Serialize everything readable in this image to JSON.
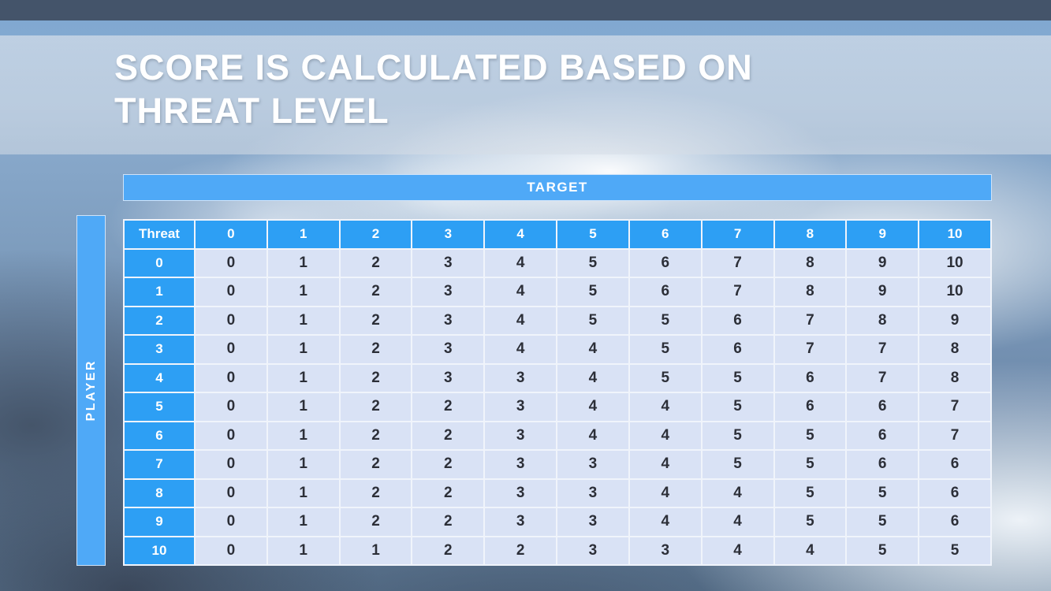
{
  "slide": {
    "title": "SCORE IS CALCULATED BASED ON THREAT LEVEL"
  },
  "table": {
    "target_label": "TARGET",
    "player_label": "PLAYER",
    "corner_label": "Threat",
    "column_headers": [
      "0",
      "1",
      "2",
      "3",
      "4",
      "5",
      "6",
      "7",
      "8",
      "9",
      "10"
    ],
    "row_headers": [
      "0",
      "1",
      "2",
      "3",
      "4",
      "5",
      "6",
      "7",
      "8",
      "9",
      "10"
    ],
    "rows": [
      [
        0,
        1,
        2,
        3,
        4,
        5,
        6,
        7,
        8,
        9,
        10
      ],
      [
        0,
        1,
        2,
        3,
        4,
        5,
        6,
        7,
        8,
        9,
        10
      ],
      [
        0,
        1,
        2,
        3,
        4,
        5,
        5,
        6,
        7,
        8,
        9
      ],
      [
        0,
        1,
        2,
        3,
        4,
        4,
        5,
        6,
        7,
        7,
        8
      ],
      [
        0,
        1,
        2,
        3,
        3,
        4,
        5,
        5,
        6,
        7,
        8
      ],
      [
        0,
        1,
        2,
        2,
        3,
        4,
        4,
        5,
        6,
        6,
        7
      ],
      [
        0,
        1,
        2,
        2,
        3,
        4,
        4,
        5,
        5,
        6,
        7
      ],
      [
        0,
        1,
        2,
        2,
        3,
        3,
        4,
        5,
        5,
        6,
        6
      ],
      [
        0,
        1,
        2,
        2,
        3,
        3,
        4,
        4,
        5,
        5,
        6
      ],
      [
        0,
        1,
        2,
        2,
        3,
        3,
        4,
        4,
        5,
        5,
        6
      ],
      [
        0,
        1,
        1,
        2,
        2,
        3,
        3,
        4,
        4,
        5,
        5
      ]
    ]
  },
  "colors": {
    "header_blue": "#2d9ff4",
    "bar_blue": "#4fa9f7",
    "cell_bg": "#d9e2f5",
    "top_bar": "#44546a"
  }
}
